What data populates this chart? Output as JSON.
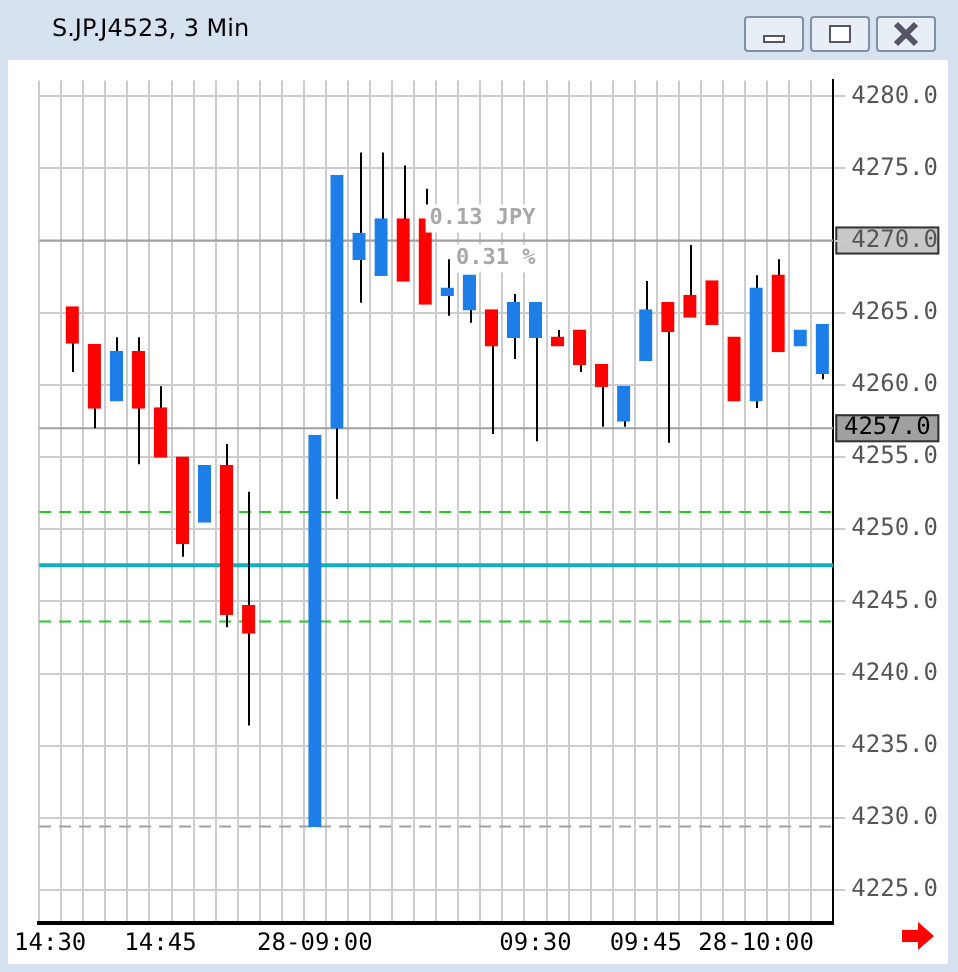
{
  "chart_data": {
    "type": "candlestick",
    "title": "S.JP.J4523, 3 Min",
    "categories": [
      "14:30",
      null,
      null,
      null,
      null,
      "14:45",
      null,
      null,
      null,
      null,
      null,
      null,
      "28-09:00",
      null,
      null,
      null,
      null,
      null,
      null,
      null,
      null,
      null,
      "09:30",
      null,
      null,
      null,
      null,
      "09:45",
      null,
      null,
      null,
      null,
      "28-10:00",
      null,
      null,
      null
    ],
    "ohlc": [
      null,
      [
        4265.4,
        4265.4,
        4260.9,
        4262.9
      ],
      [
        4262.8,
        4262.8,
        4257,
        4258.4
      ],
      [
        4258.9,
        4263.3,
        4258.9,
        4262.3
      ],
      [
        4262.3,
        4263.3,
        4254.5,
        4258.4
      ],
      [
        4258.4,
        4259.9,
        4255,
        4255
      ],
      [
        4255,
        4255,
        4248.1,
        4249
      ],
      [
        4250.5,
        4254.4,
        4250.5,
        4254.4
      ],
      [
        4254.4,
        4255.9,
        4243.2,
        4244.1
      ],
      [
        4244.7,
        4252.6,
        4236.4,
        4242.8
      ],
      null,
      null,
      [
        4229.4,
        4256.5,
        4229.4,
        4256.5
      ],
      [
        4257,
        4274.5,
        4252.1,
        4274.5
      ],
      [
        4268.7,
        4276.1,
        4265.7,
        4270.5
      ],
      [
        4267.6,
        4276.1,
        4267.6,
        4271.5
      ],
      [
        4271.5,
        4275.2,
        4267.2,
        4267.2
      ],
      [
        4271.5,
        4273.6,
        4265.6,
        4265.6
      ],
      [
        4266.2,
        4268.7,
        4264.8,
        4266.7
      ],
      [
        4265.2,
        4267.6,
        4264.3,
        4267.6
      ],
      [
        4265.2,
        4265.2,
        4256.6,
        4262.7
      ],
      [
        4263.3,
        4266.3,
        4261.8,
        4265.7
      ],
      [
        4263.3,
        4265.7,
        4256.1,
        4265.7
      ],
      [
        4263.3,
        4263.8,
        4262.7,
        4262.7
      ],
      [
        4263.8,
        4263.8,
        4260.9,
        4261.4
      ],
      [
        4261.4,
        4261.4,
        4257.1,
        4259.9
      ],
      [
        4257.5,
        4259.9,
        4257.1,
        4259.9
      ],
      [
        4261.7,
        4267.2,
        4261.7,
        4265.2
      ],
      [
        4265.7,
        4265.7,
        4256,
        4263.7
      ],
      [
        4266.2,
        4269.7,
        4264.7,
        4264.7
      ],
      [
        4267.2,
        4267.2,
        4264.2,
        4264.2
      ],
      [
        4263.3,
        4263.3,
        4258.9,
        4258.9
      ],
      [
        4258.9,
        4267.6,
        4258.4,
        4266.7
      ],
      [
        4267.6,
        4268.7,
        4262.3,
        4262.3
      ],
      [
        4262.7,
        4263.8,
        4262.7,
        4263.8
      ],
      [
        4260.8,
        4264.2,
        4260.4,
        4264.2
      ]
    ],
    "colors": [
      null,
      "#ff0000",
      "#ff0000",
      "#1e7ee8",
      "#ff0000",
      "#ff0000",
      "#ff0000",
      "#1e7ee8",
      "#ff0000",
      "#ff0000",
      null,
      null,
      "#1e7ee8",
      "#1e7ee8",
      "#1e7ee8",
      "#1e7ee8",
      "#ff0000",
      "#ff0000",
      "#1e7ee8",
      "#1e7ee8",
      "#ff0000",
      "#1e7ee8",
      "#1e7ee8",
      "#ff0000",
      "#ff0000",
      "#ff0000",
      "#1e7ee8",
      "#1e7ee8",
      "#ff0000",
      "#ff0000",
      "#ff0000",
      "#ff0000",
      "#1e7ee8",
      "#ff0000",
      "#1e7ee8",
      "#1e7ee8"
    ],
    "ylim": [
      4222.7,
      4281.1
    ],
    "yticks": [
      {
        "value": 4225,
        "label": "4225.0"
      },
      {
        "value": 4230,
        "label": "4230.0"
      },
      {
        "value": 4235,
        "label": "4235.0"
      },
      {
        "value": 4240,
        "label": "4240.0"
      },
      {
        "value": 4245,
        "label": "4245.0"
      },
      {
        "value": 4250,
        "label": "4250.0"
      },
      {
        "value": 4255,
        "label": "4255.0"
      },
      {
        "value": 4260,
        "label": "4260.0"
      },
      {
        "value": 4265,
        "label": "4265.0"
      },
      {
        "value": 4270,
        "label": "4270.0"
      },
      {
        "value": 4275,
        "label": "4275.0"
      },
      {
        "value": 4280,
        "label": "4280.0"
      }
    ],
    "grid": true,
    "ref_lines": [
      {
        "axis": "y",
        "value": 4270,
        "color": "#a0a0a0",
        "line_style": "solid"
      },
      {
        "axis": "y",
        "value": 4257,
        "label": "4257.0",
        "color": "#a0a0a0",
        "line_style": "solid"
      },
      {
        "axis": "y",
        "value": 4251.2,
        "color": "#22cc22",
        "line_style": "dashed"
      },
      {
        "axis": "y",
        "value": 4247.5,
        "color": "#10b0c0",
        "line_style": "solid"
      },
      {
        "axis": "y",
        "value": 4243.6,
        "color": "#22cc22",
        "line_style": "dashed"
      },
      {
        "axis": "y",
        "value": 4229.4,
        "color": "#a0a0a0",
        "line_style": "dashed"
      }
    ],
    "annotations": [
      "0.13 JPY",
      "0.31 %"
    ]
  }
}
